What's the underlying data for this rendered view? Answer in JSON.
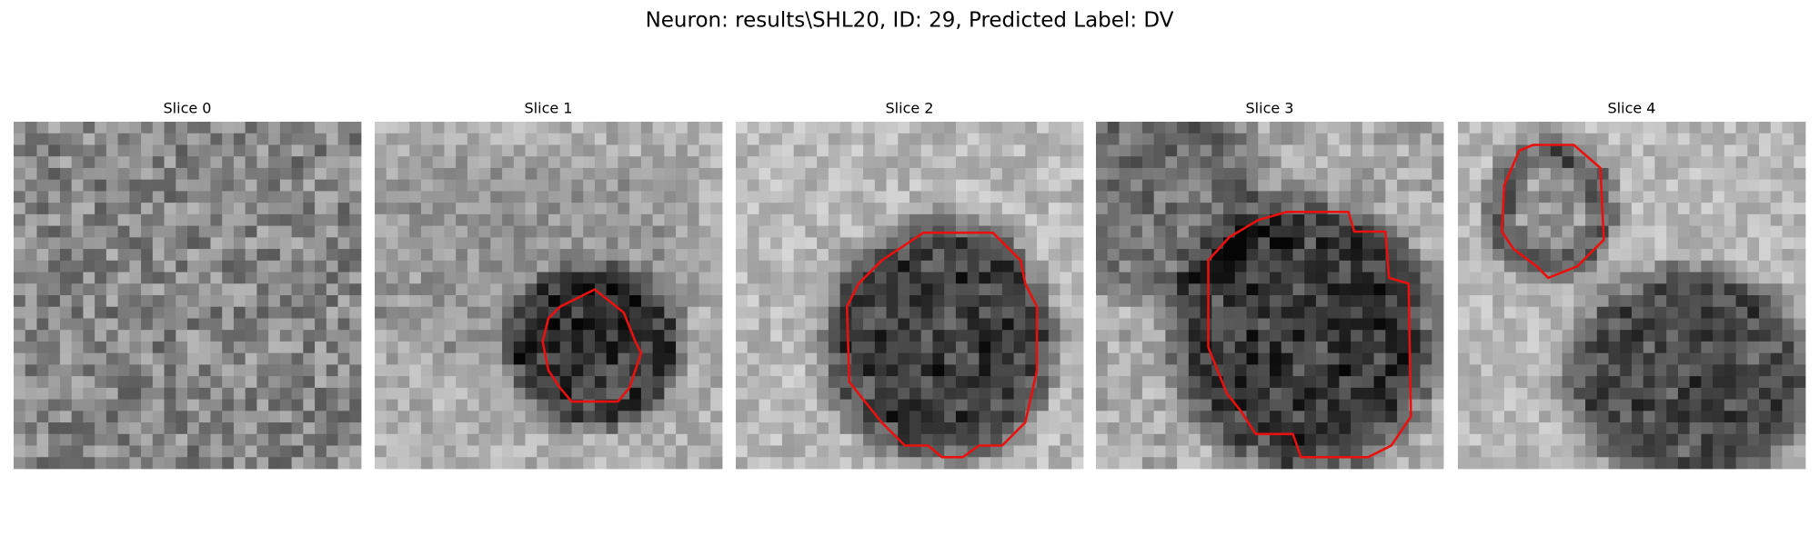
{
  "title": "Neuron: results\\SHL20, ID: 29, Predicted Label: DV",
  "panels": [
    {
      "title": "Slice 0"
    },
    {
      "title": "Slice 1"
    },
    {
      "title": "Slice 2"
    },
    {
      "title": "Slice 3"
    },
    {
      "title": "Slice 4"
    }
  ]
}
